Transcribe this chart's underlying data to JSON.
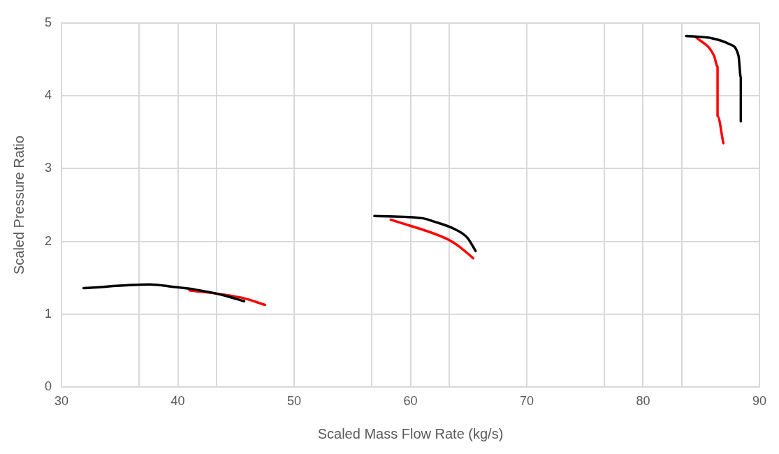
{
  "chart_data": {
    "type": "line",
    "xlabel": "Scaled Mass Flow Rate (kg/s)",
    "ylabel": "Scaled Pressure Ratio",
    "xlim": [
      30,
      90
    ],
    "xticks": [
      30,
      {
        "value": 36.67,
        "label": null
      },
      40,
      {
        "value": 43.33,
        "label": null
      },
      50,
      {
        "value": 56.67,
        "label": null
      },
      60,
      {
        "value": 63.33,
        "label": null
      },
      70,
      {
        "value": 76.67,
        "label": null
      },
      80,
      {
        "value": 83.33,
        "label": null
      },
      90
    ],
    "ylim": [
      0,
      5
    ],
    "yticks": [
      0,
      1,
      2,
      3,
      4,
      5
    ],
    "grid": true,
    "legend": false,
    "marker": "none",
    "line_style": "solid",
    "series": [
      {
        "color": "#000000",
        "x": [
          31.9,
          37.6,
          39.5,
          41.5,
          44.0,
          45.7
        ],
        "values": [
          1.36,
          1.41,
          1.38,
          1.34,
          1.26,
          1.18
        ]
      },
      {
        "color": "#ff0000",
        "x": [
          41.0,
          44.0,
          45.7,
          47.5
        ],
        "values": [
          1.33,
          1.27,
          1.22,
          1.13
        ]
      },
      {
        "color": "#000000",
        "x": [
          56.9,
          61.0,
          62.1,
          63.8,
          64.9,
          65.6
        ],
        "values": [
          2.35,
          2.32,
          2.27,
          2.17,
          2.05,
          1.87
        ]
      },
      {
        "color": "#ff0000",
        "x": [
          58.3,
          63.2,
          64.2,
          65.4
        ],
        "values": [
          2.3,
          2.03,
          1.93,
          1.77
        ]
      },
      {
        "color": "#000000",
        "x": [
          83.7,
          85.9,
          87.4,
          88.2,
          88.4,
          88.4
        ],
        "values": [
          4.82,
          4.79,
          4.71,
          4.55,
          4.25,
          3.65
        ]
      },
      {
        "color": "#ff0000",
        "x": [
          84.5,
          86.1,
          86.4,
          86.4,
          86.9
        ],
        "values": [
          4.81,
          4.55,
          4.4,
          3.72,
          3.35
        ]
      }
    ]
  }
}
